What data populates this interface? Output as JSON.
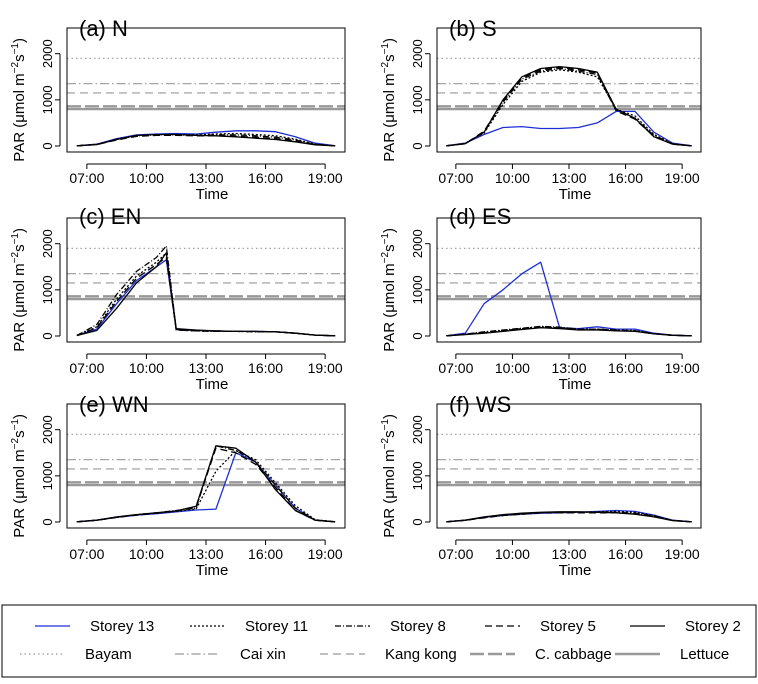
{
  "chart_data": [
    {
      "type": "line",
      "panel": "(a) N",
      "xlabel": "Time",
      "ylabel": "PAR (μmol m⁻²s⁻¹)",
      "xticks": [
        "07:00",
        "10:00",
        "13:00",
        "16:00",
        "19:00"
      ],
      "ylim": [
        0,
        2000
      ],
      "yticks": [
        0,
        1000,
        2000
      ],
      "x": [
        "06:30",
        "07:30",
        "08:30",
        "09:30",
        "10:30",
        "11:30",
        "12:30",
        "13:30",
        "14:30",
        "15:30",
        "16:30",
        "17:30",
        "18:30",
        "19:30"
      ],
      "series": [
        {
          "name": "Storey 13",
          "values": [
            5,
            40,
            160,
            240,
            260,
            270,
            260,
            300,
            330,
            330,
            310,
            200,
            60,
            5
          ]
        },
        {
          "name": "Storey 11",
          "values": [
            5,
            40,
            150,
            230,
            250,
            250,
            240,
            260,
            270,
            250,
            220,
            150,
            40,
            5
          ]
        },
        {
          "name": "Storey 8",
          "values": [
            5,
            35,
            140,
            220,
            240,
            240,
            230,
            240,
            240,
            220,
            190,
            130,
            35,
            5
          ]
        },
        {
          "name": "Storey 5",
          "values": [
            5,
            30,
            130,
            210,
            230,
            230,
            220,
            220,
            210,
            190,
            160,
            110,
            30,
            5
          ]
        },
        {
          "name": "Storey 2",
          "values": [
            5,
            30,
            140,
            230,
            250,
            250,
            230,
            220,
            200,
            170,
            140,
            90,
            25,
            5
          ]
        }
      ]
    },
    {
      "type": "line",
      "panel": "(b) S",
      "xlabel": "Time",
      "ylabel": "PAR (μmol m⁻²s⁻¹)",
      "xticks": [
        "07:00",
        "10:00",
        "13:00",
        "16:00",
        "19:00"
      ],
      "ylim": [
        0,
        2000
      ],
      "yticks": [
        0,
        1000,
        2000
      ],
      "x": [
        "06:30",
        "07:30",
        "08:30",
        "09:30",
        "10:30",
        "11:30",
        "12:30",
        "13:30",
        "14:30",
        "15:30",
        "16:30",
        "17:30",
        "18:30",
        "19:30"
      ],
      "series": [
        {
          "name": "Storey 13",
          "values": [
            5,
            60,
            250,
            400,
            420,
            380,
            380,
            400,
            500,
            750,
            750,
            300,
            60,
            5
          ]
        },
        {
          "name": "Storey 11",
          "values": [
            5,
            60,
            280,
            900,
            1400,
            1600,
            1650,
            1600,
            1500,
            800,
            650,
            250,
            50,
            5
          ]
        },
        {
          "name": "Storey 8",
          "values": [
            5,
            55,
            300,
            950,
            1450,
            1620,
            1680,
            1620,
            1550,
            780,
            600,
            230,
            45,
            5
          ]
        },
        {
          "name": "Storey 5",
          "values": [
            5,
            50,
            320,
            980,
            1480,
            1650,
            1700,
            1650,
            1580,
            760,
            580,
            210,
            40,
            5
          ]
        },
        {
          "name": "Storey 2",
          "values": [
            5,
            50,
            300,
            1000,
            1500,
            1680,
            1720,
            1680,
            1600,
            800,
            600,
            200,
            40,
            5
          ]
        }
      ]
    },
    {
      "type": "line",
      "panel": "(c) EN",
      "xlabel": "Time",
      "ylabel": "PAR (μmol m⁻²s⁻¹)",
      "xticks": [
        "07:00",
        "10:00",
        "13:00",
        "16:00",
        "19:00"
      ],
      "ylim": [
        0,
        2000
      ],
      "yticks": [
        0,
        1000,
        2000
      ],
      "x": [
        "06:30",
        "07:30",
        "08:30",
        "09:30",
        "10:30",
        "11:00",
        "11:30",
        "12:30",
        "13:30",
        "14:30",
        "15:30",
        "16:30",
        "17:30",
        "18:30",
        "19:30"
      ],
      "series": [
        {
          "name": "Storey 13",
          "values": [
            10,
            150,
            700,
            1200,
            1500,
            1650,
            150,
            120,
            110,
            100,
            100,
            90,
            60,
            20,
            5
          ]
        },
        {
          "name": "Storey 11",
          "values": [
            10,
            200,
            800,
            1300,
            1600,
            1800,
            130,
            110,
            100,
            100,
            90,
            90,
            60,
            20,
            5
          ]
        },
        {
          "name": "Storey 8",
          "values": [
            10,
            250,
            900,
            1400,
            1700,
            1950,
            140,
            120,
            110,
            100,
            100,
            90,
            60,
            20,
            5
          ]
        },
        {
          "name": "Storey 5",
          "values": [
            10,
            180,
            750,
            1250,
            1550,
            1700,
            130,
            110,
            100,
            100,
            90,
            90,
            60,
            20,
            5
          ]
        },
        {
          "name": "Storey 2",
          "values": [
            10,
            120,
            600,
            1150,
            1500,
            1800,
            160,
            130,
            110,
            100,
            100,
            90,
            60,
            20,
            5
          ]
        }
      ]
    },
    {
      "type": "line",
      "panel": "(d) ES",
      "xlabel": "Time",
      "ylabel": "PAR (μmol m⁻²s⁻¹)",
      "xticks": [
        "07:00",
        "10:00",
        "13:00",
        "16:00",
        "19:00"
      ],
      "ylim": [
        0,
        2000
      ],
      "yticks": [
        0,
        1000,
        2000
      ],
      "x": [
        "06:30",
        "07:30",
        "08:30",
        "09:30",
        "10:30",
        "11:30",
        "12:30",
        "13:30",
        "14:30",
        "15:30",
        "16:30",
        "17:30",
        "18:30",
        "19:30"
      ],
      "series": [
        {
          "name": "Storey 13",
          "values": [
            5,
            60,
            700,
            1000,
            1350,
            1600,
            180,
            160,
            200,
            150,
            150,
            60,
            20,
            5
          ]
        },
        {
          "name": "Storey 11",
          "values": [
            5,
            40,
            80,
            120,
            160,
            200,
            180,
            150,
            150,
            130,
            120,
            50,
            15,
            5
          ]
        },
        {
          "name": "Storey 8",
          "values": [
            5,
            40,
            90,
            130,
            170,
            210,
            190,
            150,
            150,
            130,
            110,
            50,
            15,
            5
          ]
        },
        {
          "name": "Storey 5",
          "values": [
            5,
            35,
            70,
            110,
            150,
            190,
            170,
            140,
            140,
            120,
            110,
            50,
            15,
            5
          ]
        },
        {
          "name": "Storey 2",
          "values": [
            5,
            30,
            60,
            100,
            140,
            180,
            160,
            130,
            130,
            110,
            100,
            45,
            15,
            5
          ]
        }
      ]
    },
    {
      "type": "line",
      "panel": "(e) WN",
      "xlabel": "Time",
      "ylabel": "PAR (μmol m⁻²s⁻¹)",
      "xticks": [
        "07:00",
        "10:00",
        "13:00",
        "16:00",
        "19:00"
      ],
      "ylim": [
        0,
        2000
      ],
      "yticks": [
        0,
        1000,
        2000
      ],
      "x": [
        "06:30",
        "07:30",
        "08:30",
        "09:30",
        "10:30",
        "11:30",
        "12:30",
        "13:30",
        "14:30",
        "15:30",
        "16:30",
        "17:30",
        "18:30",
        "19:30"
      ],
      "series": [
        {
          "name": "Storey 13",
          "values": [
            5,
            40,
            100,
            150,
            180,
            220,
            260,
            280,
            1500,
            1300,
            800,
            300,
            40,
            5
          ]
        },
        {
          "name": "Storey 11",
          "values": [
            5,
            40,
            100,
            150,
            190,
            230,
            280,
            1100,
            1550,
            1350,
            850,
            350,
            50,
            5
          ]
        },
        {
          "name": "Storey 8",
          "values": [
            5,
            40,
            100,
            160,
            200,
            250,
            300,
            1650,
            1550,
            1300,
            800,
            300,
            40,
            5
          ]
        },
        {
          "name": "Storey 5",
          "values": [
            5,
            40,
            100,
            150,
            190,
            240,
            320,
            1600,
            1500,
            1250,
            750,
            250,
            40,
            5
          ]
        },
        {
          "name": "Storey 2",
          "values": [
            5,
            40,
            110,
            160,
            200,
            240,
            340,
            1650,
            1600,
            1300,
            700,
            250,
            40,
            5
          ]
        }
      ]
    },
    {
      "type": "line",
      "panel": "(f) WS",
      "xlabel": "Time",
      "ylabel": "PAR (μmol m⁻²s⁻¹)",
      "xticks": [
        "07:00",
        "10:00",
        "13:00",
        "16:00",
        "19:00"
      ],
      "ylim": [
        0,
        2000
      ],
      "yticks": [
        0,
        1000,
        2000
      ],
      "x": [
        "06:30",
        "07:30",
        "08:30",
        "09:30",
        "10:30",
        "11:30",
        "12:30",
        "13:30",
        "14:30",
        "15:30",
        "16:30",
        "17:30",
        "18:30",
        "19:30"
      ],
      "series": [
        {
          "name": "Storey 13",
          "values": [
            5,
            40,
            100,
            140,
            170,
            190,
            200,
            210,
            230,
            250,
            230,
            150,
            40,
            5
          ]
        },
        {
          "name": "Storey 11",
          "values": [
            5,
            40,
            100,
            140,
            170,
            200,
            210,
            210,
            220,
            230,
            210,
            140,
            35,
            5
          ]
        },
        {
          "name": "Storey 8",
          "values": [
            5,
            40,
            100,
            150,
            180,
            200,
            210,
            210,
            210,
            210,
            190,
            130,
            35,
            5
          ]
        },
        {
          "name": "Storey 5",
          "values": [
            5,
            35,
            90,
            140,
            170,
            200,
            200,
            200,
            200,
            200,
            180,
            120,
            30,
            5
          ]
        },
        {
          "name": "Storey 2",
          "values": [
            5,
            40,
            110,
            160,
            190,
            210,
            220,
            220,
            210,
            200,
            170,
            110,
            30,
            5
          ]
        }
      ]
    }
  ],
  "reference_lines": [
    {
      "name": "Bayam",
      "value": 1900
    },
    {
      "name": "Cai xin",
      "value": 1350
    },
    {
      "name": "Kang kong",
      "value": 1150
    },
    {
      "name": "C. cabbage",
      "value": 860
    },
    {
      "name": "Lettuce",
      "value": 800
    }
  ],
  "legend": {
    "row1": [
      "Storey 13",
      "Storey 11",
      "Storey 8",
      "Storey 5",
      "Storey 2"
    ],
    "row2": [
      "Bayam",
      "Cai xin",
      "Kang kong",
      "C. cabbage",
      "Lettuce"
    ]
  },
  "colors": {
    "storey13": "#1f2fd6",
    "other_storeys": "#000000",
    "reference": "#999999"
  },
  "ylabel_text": {
    "prefix": "PAR (μmol m",
    "sup1": "−2",
    "mid": "s",
    "sup2": "−1",
    "suffix": ")"
  }
}
